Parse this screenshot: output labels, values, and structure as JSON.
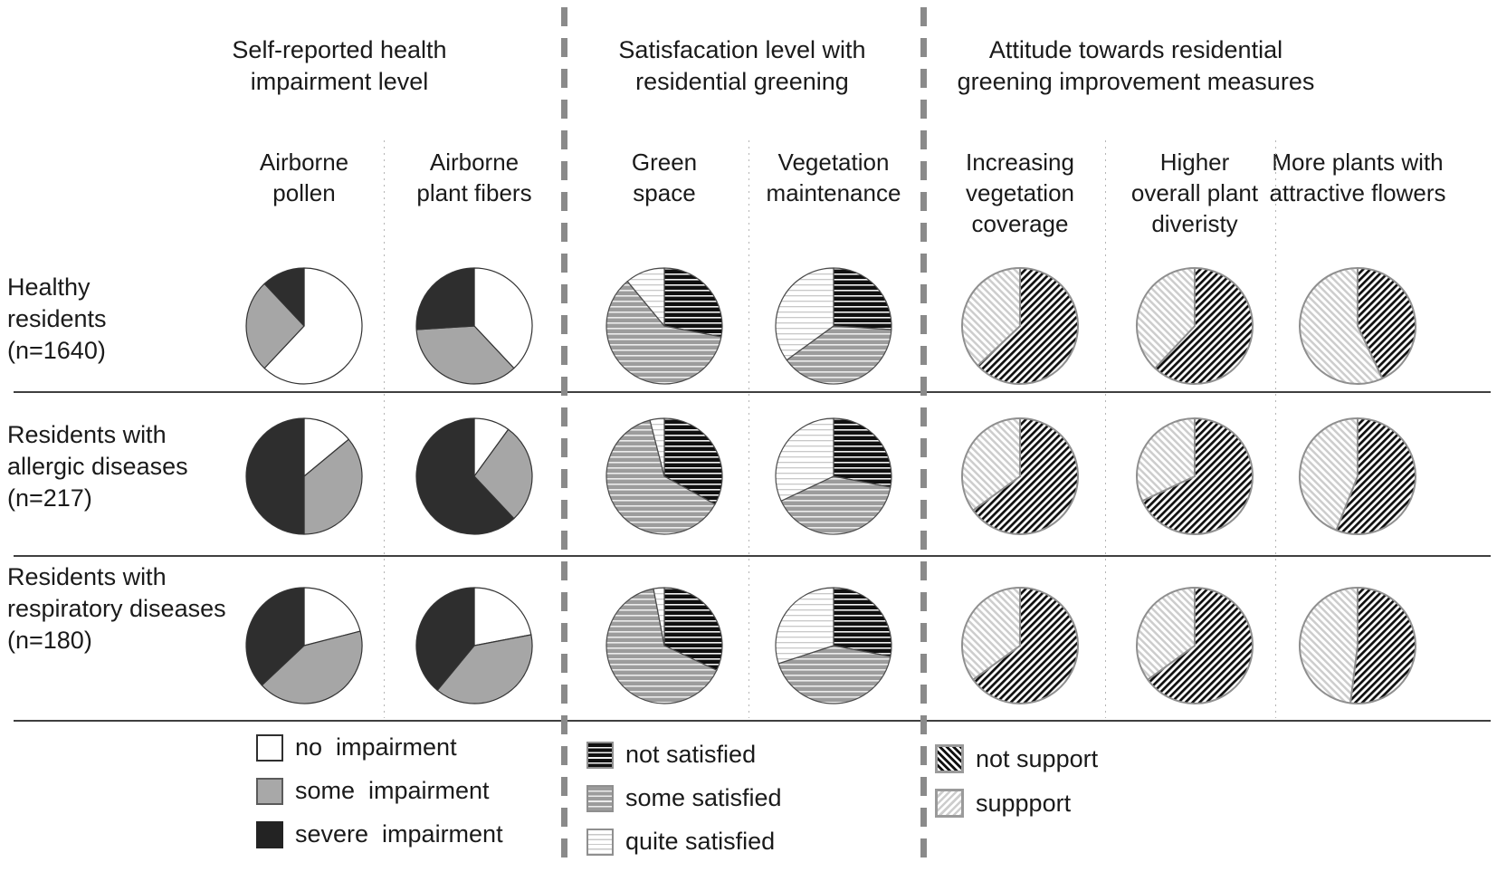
{
  "figure": {
    "groups": [
      {
        "title": "Self-reported health\nimpairment level",
        "columns": [
          {
            "label": "Airborne\npollen"
          },
          {
            "label": "Airborne\nplant fibers"
          }
        ]
      },
      {
        "title": "Satisfacation level with\nresidential greening",
        "columns": [
          {
            "label": "Green\nspace"
          },
          {
            "label": "Vegetation\nmaintenance"
          }
        ]
      },
      {
        "title": "Attitude towards residential\ngreening improvement measures",
        "columns": [
          {
            "label": "Increasing\nvegetation\ncoverage"
          },
          {
            "label": "Higher\noverall plant\ndiveristy"
          },
          {
            "label": "More plants with\nattractive flowers"
          }
        ]
      }
    ],
    "rows": [
      {
        "label": "Healthy\nresidents\n(n=1640)"
      },
      {
        "label": "Residents with\nallergic diseases\n(n=217)"
      },
      {
        "label": "Residents with\nrespiratory diseases\n(n=180)"
      }
    ],
    "legends": [
      {
        "items": [
          {
            "label": "no  impairment",
            "swatch": "solid-white"
          },
          {
            "label": "some  impairment",
            "swatch": "solid-gray"
          },
          {
            "label": "severe  impairment",
            "swatch": "solid-dark"
          }
        ]
      },
      {
        "items": [
          {
            "label": "not satisfied",
            "swatch": "hatch-black"
          },
          {
            "label": "some satisfied",
            "swatch": "hatch-gray"
          },
          {
            "label": "quite satisfied",
            "swatch": "hatch-light"
          }
        ]
      },
      {
        "items": [
          {
            "label": "not support",
            "swatch": "diag-dark"
          },
          {
            "label": "suppport",
            "swatch": "diag-light"
          }
        ]
      }
    ],
    "colors": {
      "no_impairment": "#ffffff",
      "some_impairment": "#a6a6a6",
      "severe_impairment": "#2e2e2e",
      "divider_gray": "#8a8a8a",
      "line_dark": "#3f3f3f"
    }
  },
  "chart_data": {
    "type": "pie",
    "layout": "grid of 21 pies: 3 resident rows x 7 measure columns, grouped into 3 sections",
    "slice_order": "clockwise from 12 o'clock",
    "unit": "percent, estimated from wedge angles",
    "rows": [
      "Healthy residents (n=1640)",
      "Residents with allergic diseases (n=217)",
      "Residents with respiratory diseases (n=180)"
    ],
    "columns": [
      "Airborne pollen",
      "Airborne plant fibers",
      "Green space",
      "Vegetation maintenance",
      "Increasing vegetation coverage",
      "Higher overall plant diveristy",
      "More plants with attractive flowers"
    ],
    "series_labels": {
      "impairment": [
        "no impairment",
        "some impairment",
        "severe impairment"
      ],
      "satisfaction": [
        "not satisfied",
        "some satisfied",
        "quite satisfied"
      ],
      "attitude": [
        "not support",
        "suppport"
      ]
    },
    "pies": [
      {
        "row": 0,
        "col": 0,
        "palette": "impairment",
        "values": [
          62,
          26,
          12
        ]
      },
      {
        "row": 0,
        "col": 1,
        "palette": "impairment",
        "values": [
          38,
          36,
          26
        ]
      },
      {
        "row": 0,
        "col": 2,
        "palette": "satisfaction",
        "values": [
          28,
          61,
          11
        ]
      },
      {
        "row": 0,
        "col": 3,
        "palette": "satisfaction",
        "values": [
          26,
          39,
          35
        ]
      },
      {
        "row": 0,
        "col": 4,
        "palette": "attitude",
        "values": [
          63,
          37
        ]
      },
      {
        "row": 0,
        "col": 5,
        "palette": "attitude",
        "values": [
          62,
          38
        ]
      },
      {
        "row": 0,
        "col": 6,
        "palette": "attitude",
        "values": [
          43,
          57
        ]
      },
      {
        "row": 1,
        "col": 0,
        "palette": "impairment",
        "values": [
          14,
          36,
          50
        ]
      },
      {
        "row": 1,
        "col": 1,
        "palette": "impairment",
        "values": [
          10,
          28,
          62
        ]
      },
      {
        "row": 1,
        "col": 2,
        "palette": "satisfaction",
        "values": [
          33,
          63,
          4
        ]
      },
      {
        "row": 1,
        "col": 3,
        "palette": "satisfaction",
        "values": [
          28,
          40,
          32
        ]
      },
      {
        "row": 1,
        "col": 4,
        "palette": "attitude",
        "values": [
          65,
          35
        ]
      },
      {
        "row": 1,
        "col": 5,
        "palette": "attitude",
        "values": [
          68,
          32
        ]
      },
      {
        "row": 1,
        "col": 6,
        "palette": "attitude",
        "values": [
          56,
          44
        ]
      },
      {
        "row": 2,
        "col": 0,
        "palette": "impairment",
        "values": [
          21,
          42,
          37
        ]
      },
      {
        "row": 2,
        "col": 1,
        "palette": "impairment",
        "values": [
          22,
          39,
          39
        ]
      },
      {
        "row": 2,
        "col": 2,
        "palette": "satisfaction",
        "values": [
          32,
          65,
          3
        ]
      },
      {
        "row": 2,
        "col": 3,
        "palette": "satisfaction",
        "values": [
          28,
          42,
          30
        ]
      },
      {
        "row": 2,
        "col": 4,
        "palette": "attitude",
        "values": [
          65,
          35
        ]
      },
      {
        "row": 2,
        "col": 5,
        "palette": "attitude",
        "values": [
          65,
          35
        ]
      },
      {
        "row": 2,
        "col": 6,
        "palette": "attitude",
        "values": [
          52,
          48
        ]
      }
    ]
  }
}
